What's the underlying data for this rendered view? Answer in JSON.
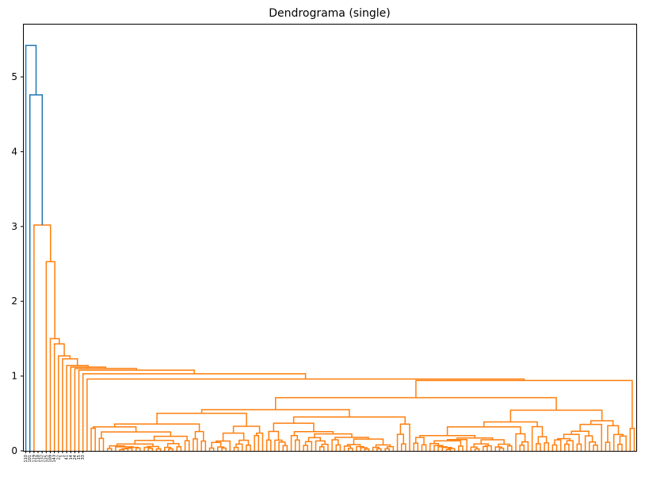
{
  "chart_data": {
    "type": "dendrogram",
    "title": "Dendrograma (single)",
    "xlabel": "",
    "ylabel": "",
    "ylim": [
      0,
      5.7
    ],
    "y_ticks": [
      0,
      1,
      2,
      3,
      4,
      5
    ],
    "n_leaves": 150,
    "grid": false,
    "colors": {
      "above_threshold": "#1f77b4",
      "cluster": "#ff7f0e"
    },
    "top_merges": [
      5.42,
      4.76,
      3.02,
      2.53,
      1.5,
      1.43,
      1.27,
      1.23,
      1.14,
      1.12,
      1.1,
      1.08,
      1.03,
      0.96,
      0.94
    ],
    "leaf_labels_visible": [
      "110",
      "101",
      "119",
      "118",
      "132",
      "125",
      "109",
      "143",
      "22",
      "1",
      "41",
      "14",
      "24",
      "15",
      "33"
    ]
  }
}
